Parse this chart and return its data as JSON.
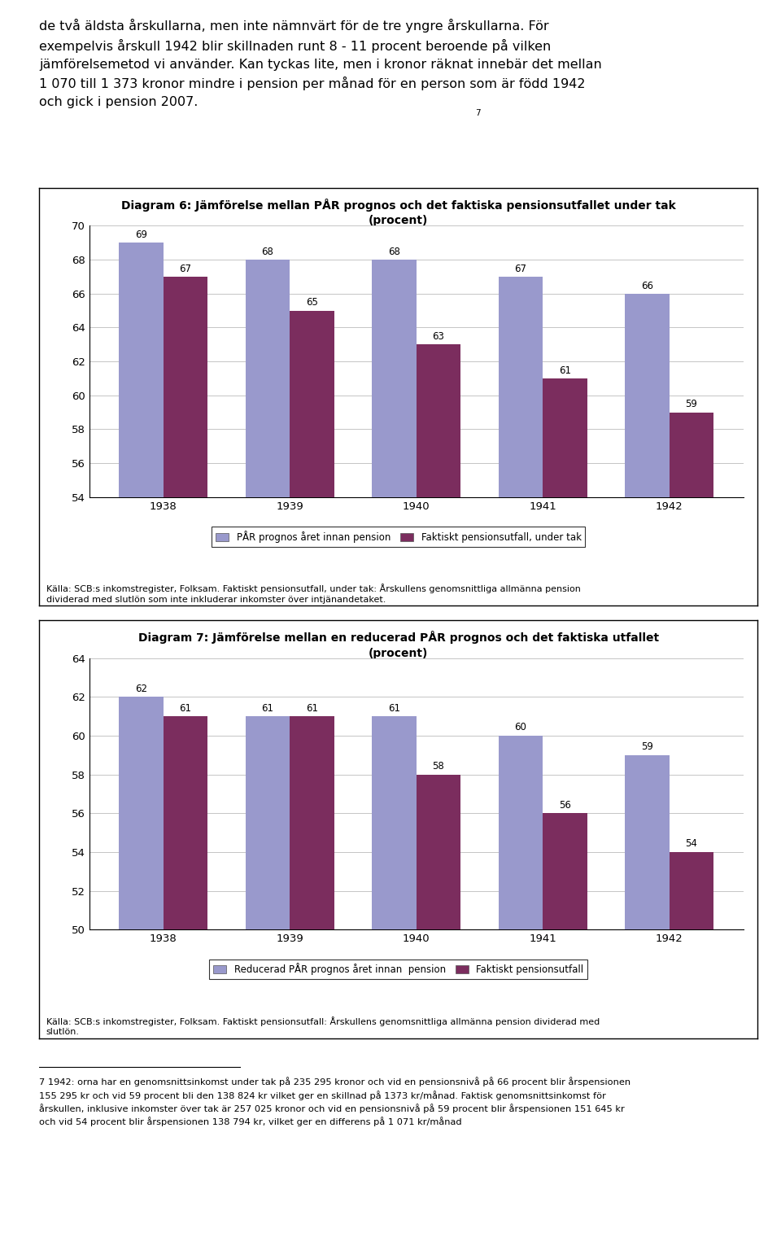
{
  "header_text": "de två äldsta årskullarna, men inte nämnvärt för de tre yngre årskullarna. För\nexempelvis årskull 1942 blir skillnaden runt 8 - 11 procent beroende på vilken\njämförelsemetod vi använder. Kan tyckas lite, men i kronor räknat innebär det mellan\n1 070 till 1 373 kronor mindre i pension per månad för en person som är född 1942\noch gick i pension 2007.",
  "header_superscript": "7",
  "chart1": {
    "title_line1": "Diagram 6: Jämförelse mellan PÅR prognos och det faktiska pensionsutfallet under tak",
    "title_line2": "(procent)",
    "categories": [
      "1938",
      "1939",
      "1940",
      "1941",
      "1942"
    ],
    "series1_values": [
      69,
      68,
      68,
      67,
      66
    ],
    "series2_values": [
      67,
      65,
      63,
      61,
      59
    ],
    "series1_label": "PÅR prognos året innan pension",
    "series2_label": "Faktiskt pensionsutfall, under tak",
    "series1_color": "#9999CC",
    "series2_color": "#7B2D5E",
    "ylim": [
      54,
      70
    ],
    "yticks": [
      54,
      56,
      58,
      60,
      62,
      64,
      66,
      68,
      70
    ],
    "source_text": "Källa: SCB:s inkomstregister, Folksam. Faktiskt pensionsutfall, under tak: Årskullens genomsnittliga allmänna pension\ndividerad med slutlön som inte inkluderar inkomster över intjänandetaket."
  },
  "chart2": {
    "title_line1": "Diagram 7: Jämförelse mellan en reducerad PÅR prognos och det faktiska utfallet",
    "title_line2": "(procent)",
    "categories": [
      "1938",
      "1939",
      "1940",
      "1941",
      "1942"
    ],
    "series1_values": [
      62,
      61,
      61,
      60,
      59
    ],
    "series2_values": [
      61,
      61,
      58,
      56,
      54
    ],
    "series1_label": "Reducerad PÅR prognos året innan  pension",
    "series2_label": "Faktiskt pensionsutfall",
    "series1_color": "#9999CC",
    "series2_color": "#7B2D5E",
    "ylim": [
      50,
      64
    ],
    "yticks": [
      50,
      52,
      54,
      56,
      58,
      60,
      62,
      64
    ],
    "source_text": "Källa: SCB:s inkomstregister, Folksam. Faktiskt pensionsutfall: Årskullens genomsnittliga allmänna pension dividerad med\nslutlön."
  },
  "footnote_line": "___________________________",
  "footnote_text": "7 1942: orna har en genomsnittsinkomst under tak på 235 295 kronor och vid en pensionsnivå på 66 procent blir årspensionen\n155 295 kr och vid 59 procent bli den 138 824 kr vilket ger en skillnad på 1373 kr/månad. Faktisk genomsnittsinkomst för\nårskullen, inklusive inkomster över tak är 257 025 kronor och vid en pensionsnivå på 59 procent blir årspensionen 151 645 kr\noch vid 54 procent blir årspensionen 138 794 kr, vilket ger en differens på 1 071 kr/månad"
}
